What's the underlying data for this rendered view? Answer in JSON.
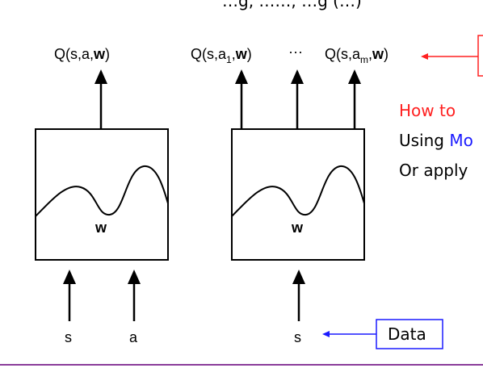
{
  "top_partial_text": "…g,  ……,  …g (…)",
  "left_network": {
    "output_label": {
      "prefix": "Q(s,a,",
      "bold": "w",
      "suffix": ")"
    },
    "weight_label": "w",
    "inputs": [
      "s",
      "a"
    ]
  },
  "right_network": {
    "output_first": {
      "prefix": "Q(s,a",
      "sub": "1",
      "mid": ",",
      "bold": "w",
      "suffix": ")"
    },
    "ellipsis": "···",
    "output_last": {
      "prefix": "Q(s,a",
      "sub": "m",
      "mid": ",",
      "bold": "w",
      "suffix": ")"
    },
    "weight_label": "w",
    "input": "s"
  },
  "side_text": {
    "line1": "How to",
    "line2_prefix": "Using ",
    "line2_highlight": "Mo",
    "line3": "Or apply"
  },
  "data_box_label": "Data",
  "colors": {
    "red_accent": "#ff2020",
    "blue_accent": "#1a1aff",
    "bottom_rule": "#8a3c9a"
  }
}
